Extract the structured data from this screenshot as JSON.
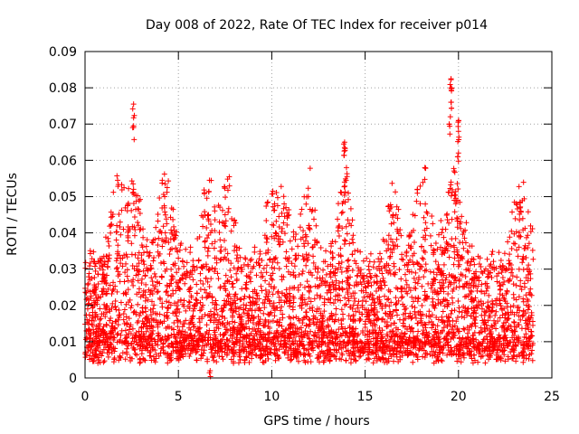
{
  "chart_data": {
    "type": "scatter",
    "title": "Day 008 of 2022, Rate Of TEC Index for receiver p014",
    "xlabel": "GPS time / hours",
    "ylabel": "ROTI / TECUs",
    "xlim": [
      0,
      25
    ],
    "ylim": [
      0,
      0.09
    ],
    "xticks": [
      0,
      5,
      10,
      15,
      20,
      25
    ],
    "yticks": [
      0,
      0.01,
      0.02,
      0.03,
      0.04,
      0.05,
      0.06,
      0.07,
      0.08,
      0.09
    ],
    "xtick_labels": [
      "0",
      "5",
      "10",
      "15",
      "20",
      "25"
    ],
    "ytick_labels": [
      "0",
      "0.01",
      "0.02",
      "0.03",
      "0.04",
      "0.05",
      "0.06",
      "0.07",
      "0.08",
      "0.09"
    ],
    "grid": true,
    "marker": "+",
    "color": "#ff0000",
    "series": [
      {
        "name": "ROTI",
        "description_range": "dense band 0.003-0.03 TECU/s from 0 to 24 h",
        "peaks": [
          {
            "x": 2.6,
            "y": 0.0755
          },
          {
            "x": 2.6,
            "y": 0.0695
          },
          {
            "x": 2.6,
            "y": 0.052
          },
          {
            "x": 1.7,
            "y": 0.042
          },
          {
            "x": 4.3,
            "y": 0.04
          },
          {
            "x": 6.6,
            "y": 0.045
          },
          {
            "x": 7.5,
            "y": 0.045
          },
          {
            "x": 10.2,
            "y": 0.04
          },
          {
            "x": 12.0,
            "y": 0.042
          },
          {
            "x": 13.9,
            "y": 0.065
          },
          {
            "x": 13.9,
            "y": 0.0635
          },
          {
            "x": 14.0,
            "y": 0.058
          },
          {
            "x": 13.9,
            "y": 0.054
          },
          {
            "x": 16.5,
            "y": 0.045
          },
          {
            "x": 18.2,
            "y": 0.058
          },
          {
            "x": 17.8,
            "y": 0.052
          },
          {
            "x": 19.6,
            "y": 0.0825
          },
          {
            "x": 19.6,
            "y": 0.08
          },
          {
            "x": 19.6,
            "y": 0.076
          },
          {
            "x": 19.5,
            "y": 0.07
          },
          {
            "x": 20.0,
            "y": 0.071
          },
          {
            "x": 20.0,
            "y": 0.068
          },
          {
            "x": 20.0,
            "y": 0.062
          },
          {
            "x": 19.6,
            "y": 0.054
          },
          {
            "x": 23.3,
            "y": 0.0485
          },
          {
            "x": 6.7,
            "y": 0.002
          }
        ]
      }
    ]
  }
}
